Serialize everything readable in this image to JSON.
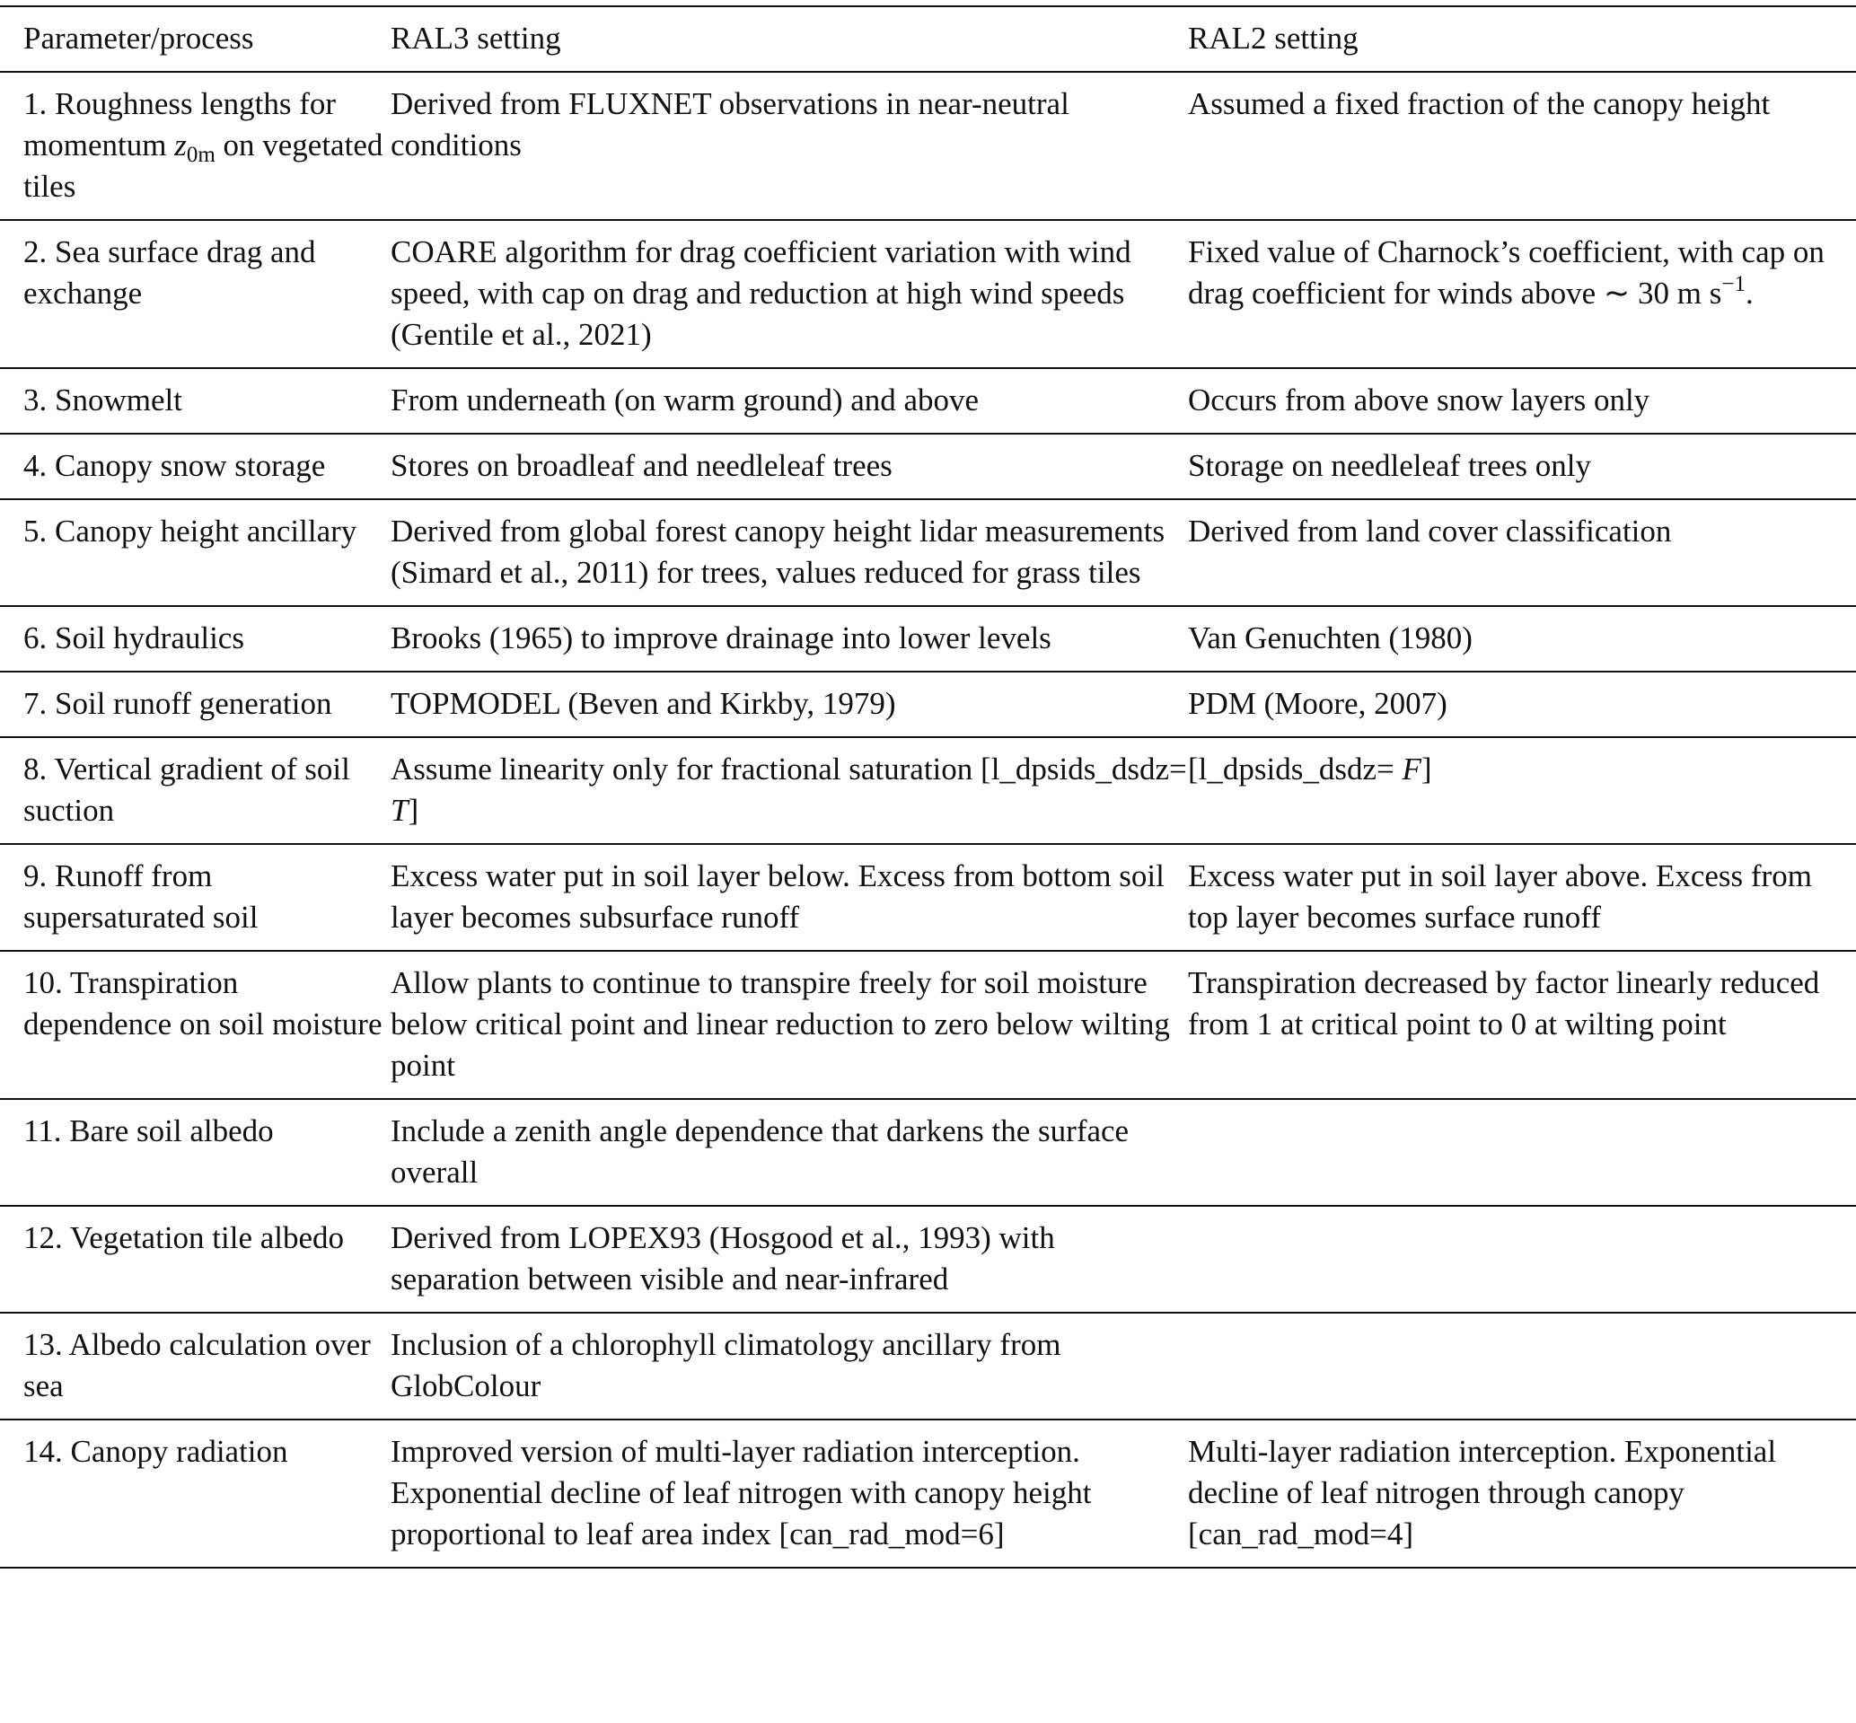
{
  "header": [
    "Parameter/process",
    "RAL3 setting",
    "RAL2 setting"
  ],
  "rows": [
    [
      [
        {
          "t": "1. Roughness lengths for momentum "
        },
        {
          "t": "z",
          "i": 1
        },
        {
          "t": "0m",
          "sub": 1
        },
        {
          "t": " on vegetated tiles"
        }
      ],
      [
        {
          "t": "Derived from FLUXNET observations in near-neutral conditions"
        }
      ],
      [
        {
          "t": "Assumed a fixed fraction of the canopy height"
        }
      ]
    ],
    [
      [
        {
          "t": "2. Sea surface drag and exchange"
        }
      ],
      [
        {
          "t": "COARE algorithm for drag coefficient variation with wind speed, with cap on drag and reduction at high wind speeds (Gentile et al., 2021)"
        }
      ],
      [
        {
          "t": "Fixed value of Charnock’s coefficient, with cap on drag coefficient for winds above ∼ 30 m s"
        },
        {
          "t": "−1",
          "sup": 1
        },
        {
          "t": "."
        }
      ]
    ],
    [
      [
        {
          "t": "3. Snowmelt"
        }
      ],
      [
        {
          "t": "From underneath (on warm ground) and above"
        }
      ],
      [
        {
          "t": "Occurs from above snow layers only"
        }
      ]
    ],
    [
      [
        {
          "t": "4. Canopy snow storage"
        }
      ],
      [
        {
          "t": "Stores on broadleaf and needleleaf trees"
        }
      ],
      [
        {
          "t": "Storage on needleleaf trees only"
        }
      ]
    ],
    [
      [
        {
          "t": "5. Canopy height ancillary"
        }
      ],
      [
        {
          "t": "Derived from global forest canopy height lidar measurements (Simard et al., 2011) for trees, values reduced for grass tiles"
        }
      ],
      [
        {
          "t": "Derived from land cover classification"
        }
      ]
    ],
    [
      [
        {
          "t": "6. Soil hydraulics"
        }
      ],
      [
        {
          "t": "Brooks (1965) to improve drainage into lower levels"
        }
      ],
      [
        {
          "t": "Van Genuchten (1980)"
        }
      ]
    ],
    [
      [
        {
          "t": "7. Soil runoff generation"
        }
      ],
      [
        {
          "t": "TOPMODEL (Beven and Kirkby, 1979)"
        }
      ],
      [
        {
          "t": "PDM (Moore, 2007)"
        }
      ]
    ],
    [
      [
        {
          "t": "8. Vertical gradient of soil suction"
        }
      ],
      [
        {
          "t": "Assume linearity only for fractional saturation [l_dpsids_dsdz= "
        },
        {
          "t": "T",
          "i": 1
        },
        {
          "t": "]"
        }
      ],
      [
        {
          "t": "[l_dpsids_dsdz= "
        },
        {
          "t": "F",
          "i": 1
        },
        {
          "t": "]"
        }
      ]
    ],
    [
      [
        {
          "t": "9. Runoff from supersaturated soil"
        }
      ],
      [
        {
          "t": "Excess water put in soil layer below. Excess from bottom soil layer becomes subsurface runoff"
        }
      ],
      [
        {
          "t": "Excess water put in soil layer above. Excess from top layer becomes surface runoff"
        }
      ]
    ],
    [
      [
        {
          "t": "10. Transpiration dependence on soil moisture"
        }
      ],
      [
        {
          "t": "Allow plants to continue to transpire freely for soil moisture below critical point and linear reduction to zero below wilting point"
        }
      ],
      [
        {
          "t": "Transpiration decreased by factor linearly reduced from 1 at critical point to 0 at wilting point"
        }
      ]
    ],
    [
      [
        {
          "t": "11. Bare soil albedo"
        }
      ],
      [
        {
          "t": "Include a zenith angle dependence that darkens the surface overall"
        }
      ],
      []
    ],
    [
      [
        {
          "t": "12. Vegetation tile albedo"
        }
      ],
      [
        {
          "t": "Derived from LOPEX93 (Hosgood et al., 1993) with separation between visible and near-infrared"
        }
      ],
      []
    ],
    [
      [
        {
          "t": "13. Albedo calculation over sea"
        }
      ],
      [
        {
          "t": "Inclusion of a chlorophyll climatology ancillary from GlobColour"
        }
      ],
      []
    ],
    [
      [
        {
          "t": "14. Canopy radiation"
        }
      ],
      [
        {
          "t": "Improved version of multi-layer radiation interception. Exponential decline of leaf nitrogen with canopy height proportional to leaf area index [can_rad_mod=6]"
        }
      ],
      [
        {
          "t": "Multi-layer radiation interception. Exponential decline of leaf nitrogen through canopy [can_rad_mod=4]"
        }
      ]
    ]
  ]
}
